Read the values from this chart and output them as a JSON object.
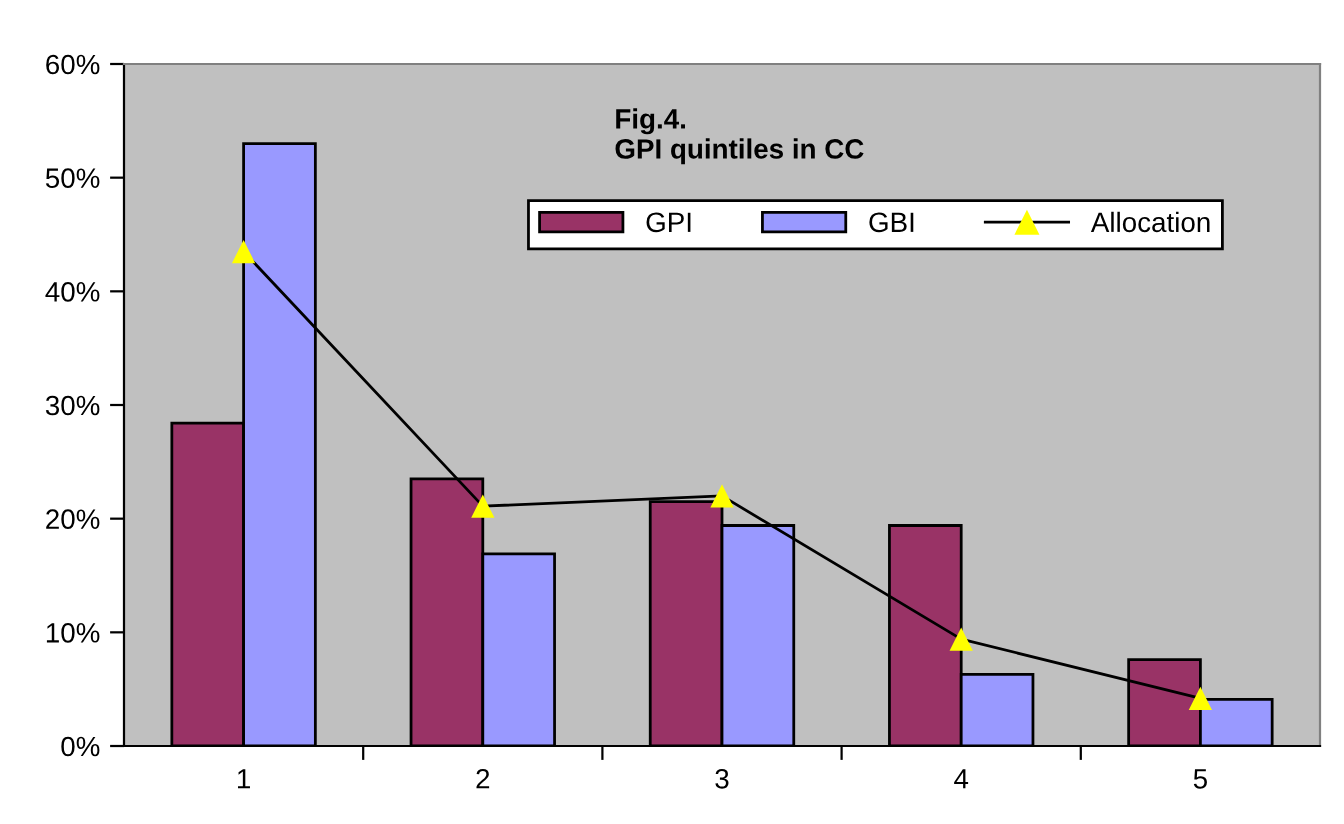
{
  "chart_data": {
    "type": "bar",
    "title": "Fig.4.\nGPI quintiles in CC",
    "categories": [
      "1",
      "2",
      "3",
      "4",
      "5"
    ],
    "series": [
      {
        "name": "GPI",
        "color": "#993366",
        "values": [
          28.4,
          23.5,
          21.5,
          19.4,
          7.6
        ]
      },
      {
        "name": "GBI",
        "color": "#9999ff",
        "values": [
          53.0,
          16.9,
          19.4,
          6.3,
          4.1
        ]
      },
      {
        "name": "Allocation",
        "type": "line",
        "color": "#000000",
        "colors": [
          "#ffff00",
          "#ffff00",
          "#ffff00",
          "#ffff00",
          "#ffff00"
        ],
        "marker": "triangle",
        "line_style": "solid",
        "values": [
          43.5,
          21.1,
          22.0,
          9.4,
          4.2
        ]
      }
    ],
    "ylim": [
      0,
      60
    ],
    "yticks": [
      {
        "value": 0,
        "label": "0%"
      },
      {
        "value": 10,
        "label": "10%"
      },
      {
        "value": 20,
        "label": "20%"
      },
      {
        "value": 30,
        "label": "30%"
      },
      {
        "value": 40,
        "label": "40%"
      },
      {
        "value": 50,
        "label": "50%"
      },
      {
        "value": 60,
        "label": "60%"
      }
    ],
    "grid": false,
    "legend": "top right"
  }
}
